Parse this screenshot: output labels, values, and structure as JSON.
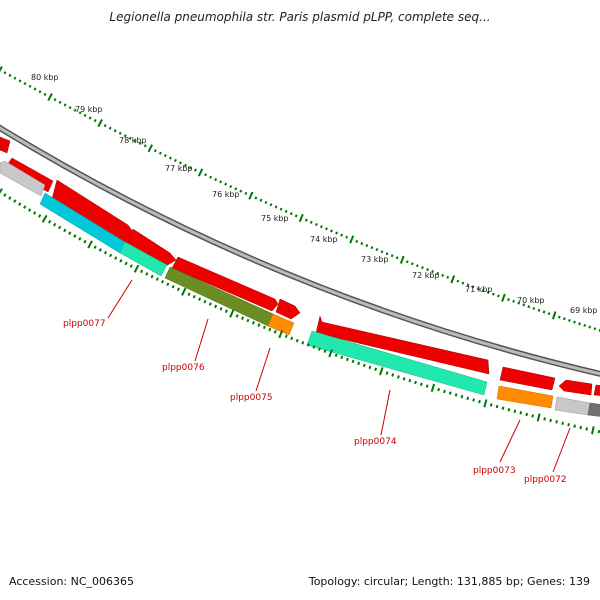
{
  "title": "Legionella pneumophila str. Paris plasmid pLPP, complete seq...",
  "accession": "Accession: NC_006365",
  "stats": "Topology: circular; Length: 131,885 bp; Genes: 139",
  "kbp_labels": [
    "80 kbp",
    "79 kbp",
    "78 kbp",
    "77 kbp",
    "76 kbp",
    "75 kbp",
    "74 kbp",
    "73 kbp",
    "72 kbp",
    "71 kbp",
    "70 kbp",
    "69 kbp"
  ],
  "gene_labels": [
    "plpp0077",
    "plpp0076",
    "plpp0075",
    "plpp0074",
    "plpp0073",
    "plpp0072"
  ],
  "colors": {
    "cds_red": "#ee0000",
    "cyan": "#00c8d8",
    "aqua_green": "#22e8b0",
    "olive": "#6b8e23",
    "orange": "#ff8c00",
    "light_gray": "#c8c8c8",
    "dark_gray": "#707070",
    "tick_green": "#007700",
    "backbone_gray": "#888888",
    "label_red": "#cc0000"
  }
}
